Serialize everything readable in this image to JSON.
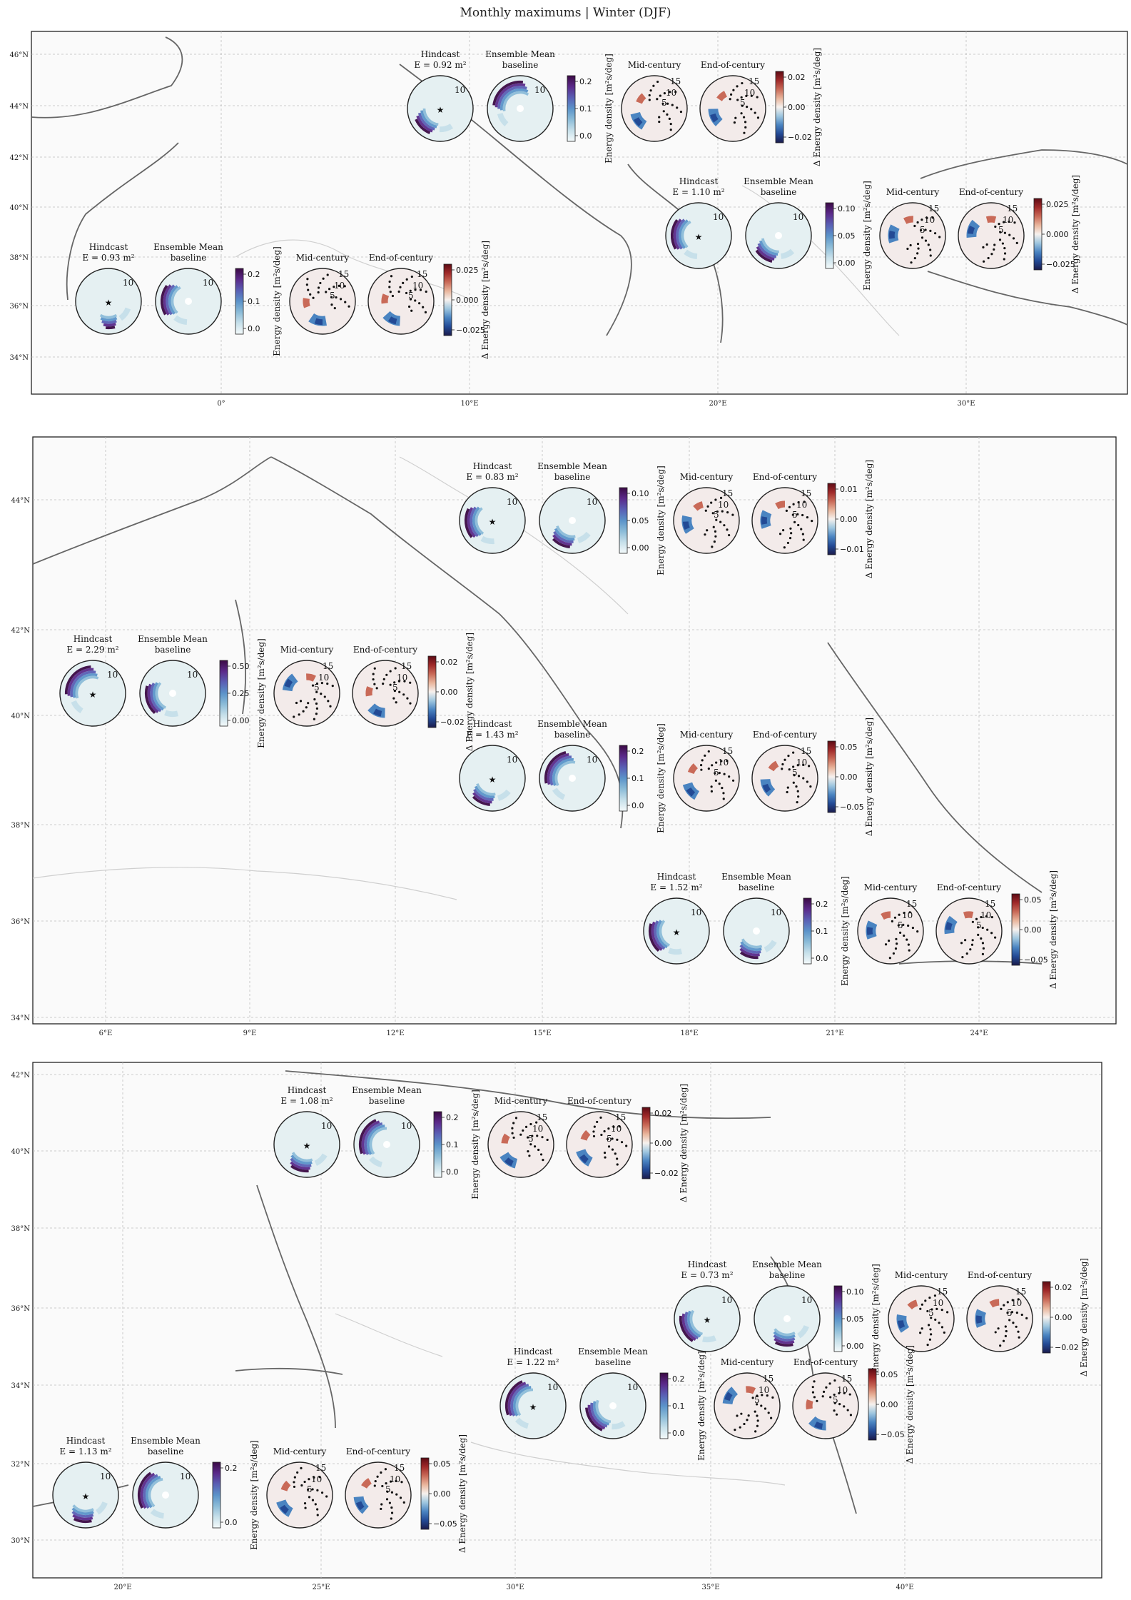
{
  "title": "Monthly maximums | Winter (DJF)",
  "colors": {
    "baseline_disc": "#e5f0f2",
    "delta_disc": "#f3ebea",
    "star": "#c0392b",
    "seq_ramp": [
      "#f4fafb",
      "#c7e0ea",
      "#8cbcd8",
      "#5b93c9",
      "#5a5fb4",
      "#5b2a8a",
      "#3b0a44"
    ],
    "div_ramp": [
      "#1b1b4b",
      "#234a95",
      "#4a84c1",
      "#9ec6df",
      "#f6f1ee",
      "#e9b59c",
      "#c96a58",
      "#a02a2a",
      "#5c0b14"
    ]
  },
  "panel_titles": {
    "hindcast": "Hindcast",
    "ensemble": "Ensemble Mean",
    "baseline": "baseline",
    "mid": "Mid-century",
    "end": "End-of-century"
  },
  "radial_labels": [
    "10",
    "5",
    "15"
  ],
  "cb_labels": {
    "seq": "Energy density [m²s/deg]",
    "div": "Δ Energy density [m²s/deg]"
  },
  "chart_data": [
    {
      "type": "polar-heatmap",
      "map": "panel-1",
      "lon_ticks": [
        "0°",
        "10°E",
        "20°E",
        "30°E"
      ],
      "lat_ticks": [
        "46°N",
        "44°N",
        "42°N",
        "40°N",
        "38°N",
        "36°N",
        "34°N"
      ],
      "stations": [
        {
          "energy": "E = 0.93 m²",
          "seq_ticks": [
            "0.2",
            "0.1",
            "0.0"
          ],
          "div_ticks": [
            "0.025",
            "0.000",
            "−0.025"
          ]
        },
        {
          "energy": "E = 0.92 m²",
          "seq_ticks": [
            "0.2",
            "0.1",
            "0.0"
          ],
          "div_ticks": [
            "0.02",
            "0.00",
            "−0.02"
          ]
        },
        {
          "energy": "E = 1.10 m²",
          "seq_ticks": [
            "0.10",
            "0.05",
            "0.00"
          ],
          "div_ticks": [
            "0.025",
            "0.000",
            "−0.025"
          ]
        }
      ]
    },
    {
      "type": "polar-heatmap",
      "map": "panel-2",
      "lon_ticks": [
        "6°E",
        "9°E",
        "12°E",
        "15°E",
        "18°E",
        "21°E",
        "24°E"
      ],
      "lat_ticks": [
        "44°N",
        "42°N",
        "40°N",
        "38°N",
        "36°N",
        "34°N"
      ],
      "stations": [
        {
          "energy": "E = 0.83 m²",
          "seq_ticks": [
            "0.10",
            "0.05",
            "0.00"
          ],
          "div_ticks": [
            "0.01",
            "0.00",
            "−0.01"
          ]
        },
        {
          "energy": "E = 2.29 m²",
          "seq_ticks": [
            "0.50",
            "0.25",
            "0.00"
          ],
          "div_ticks": [
            "0.02",
            "0.00",
            "−0.02"
          ]
        },
        {
          "energy": "E = 1.43 m²",
          "seq_ticks": [
            "0.2",
            "0.1",
            "0.0"
          ],
          "div_ticks": [
            "0.05",
            "0.00",
            "−0.05"
          ]
        },
        {
          "energy": "E = 1.52 m²",
          "seq_ticks": [
            "0.2",
            "0.1",
            "0.0"
          ],
          "div_ticks": [
            "0.05",
            "0.00",
            "−0.05"
          ]
        }
      ]
    },
    {
      "type": "polar-heatmap",
      "map": "panel-3",
      "lon_ticks": [
        "20°E",
        "25°E",
        "30°E",
        "35°E",
        "40°E"
      ],
      "lat_ticks": [
        "42°N",
        "40°N",
        "38°N",
        "36°N",
        "34°N",
        "32°N",
        "30°N"
      ],
      "stations": [
        {
          "energy": "E = 1.08 m²",
          "seq_ticks": [
            "0.2",
            "0.1",
            "0.0"
          ],
          "div_ticks": [
            "0.02",
            "0.00",
            "−0.02"
          ]
        },
        {
          "energy": "E = 0.73 m²",
          "seq_ticks": [
            "0.10",
            "0.05",
            "0.00"
          ],
          "div_ticks": [
            "0.02",
            "0.00",
            "−0.02"
          ]
        },
        {
          "energy": "E = 1.22 m²",
          "seq_ticks": [
            "0.2",
            "0.1",
            "0.0"
          ],
          "div_ticks": [
            "0.05",
            "0.00",
            "−0.05"
          ]
        },
        {
          "energy": "E = 1.13 m²",
          "seq_ticks": [
            "0.2",
            "0.0"
          ],
          "div_ticks": [
            "0.05",
            "0.00",
            "−0.05"
          ]
        }
      ]
    }
  ]
}
